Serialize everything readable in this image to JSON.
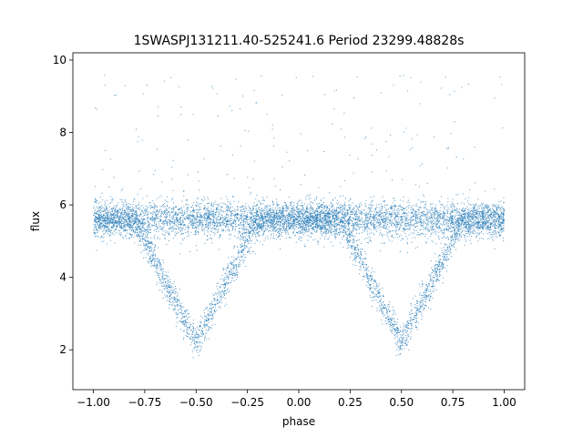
{
  "chart_data": {
    "type": "scatter",
    "title": "1SWASPJ131211.40-525241.6 Period 23299.48828s",
    "xlabel": "phase",
    "ylabel": "flux",
    "xlim": [
      -1.1,
      1.1
    ],
    "ylim": [
      0.9,
      10.2
    ],
    "xticks": [
      -1.0,
      -0.75,
      -0.5,
      -0.25,
      0.0,
      0.25,
      0.5,
      0.75,
      1.0
    ],
    "xtick_labels": [
      "−1.00",
      "−0.75",
      "−0.50",
      "−0.25",
      "0.00",
      "0.25",
      "0.50",
      "0.75",
      "1.00"
    ],
    "yticks": [
      2,
      4,
      6,
      8,
      10
    ],
    "ytick_labels": [
      "2",
      "4",
      "6",
      "8",
      "10"
    ],
    "grid": false,
    "legend": "none",
    "point_color": "#1f77b4",
    "series": [
      {
        "baseline_flux": 5.6,
        "baseline_spread": 0.25,
        "eclipses": [
          {
            "center_phase": -0.5,
            "min_flux": 2.2,
            "half_width": 0.3
          },
          {
            "center_phase": 0.5,
            "min_flux": 2.2,
            "half_width": 0.3
          }
        ],
        "outlier_flux_range": [
          4.5,
          9.6
        ]
      }
    ]
  }
}
